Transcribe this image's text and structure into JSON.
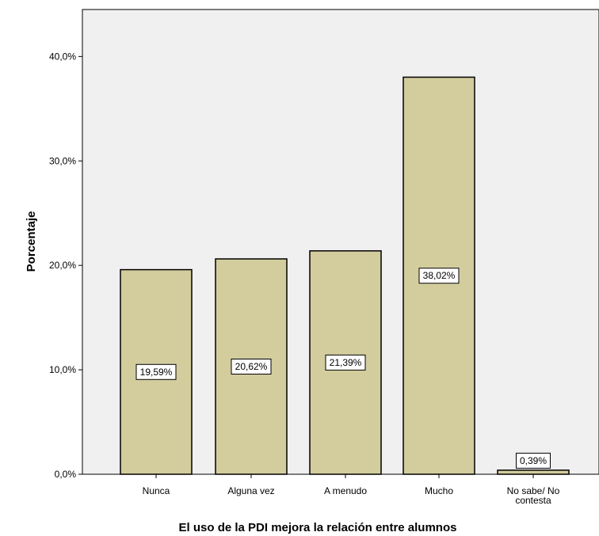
{
  "chart_data": {
    "type": "bar",
    "xlabel": "El uso de la PDI mejora la relación entre alumnos",
    "ylabel": "Porcentaje",
    "categories": [
      [
        "Nunca"
      ],
      [
        "Alguna vez"
      ],
      [
        "A menudo"
      ],
      [
        "Mucho"
      ],
      [
        "No sabe/ No",
        "contesta"
      ]
    ],
    "values": [
      19.59,
      20.62,
      21.39,
      38.02,
      0.39
    ],
    "data_labels": [
      "19,59%",
      "20,62%",
      "21,39%",
      "38,02%",
      "0,39%"
    ],
    "yticks": [
      0,
      10,
      20,
      30,
      40
    ],
    "ytick_labels": [
      "0,0%",
      "10,0%",
      "20,0%",
      "30,0%",
      "40,0%"
    ],
    "ylim": [
      0,
      44.5
    ],
    "grid": false,
    "colors": {
      "bar_fill": "#d3cc9d",
      "bar_stroke": "#000000",
      "plot_background": "#f0f0f0"
    }
  }
}
